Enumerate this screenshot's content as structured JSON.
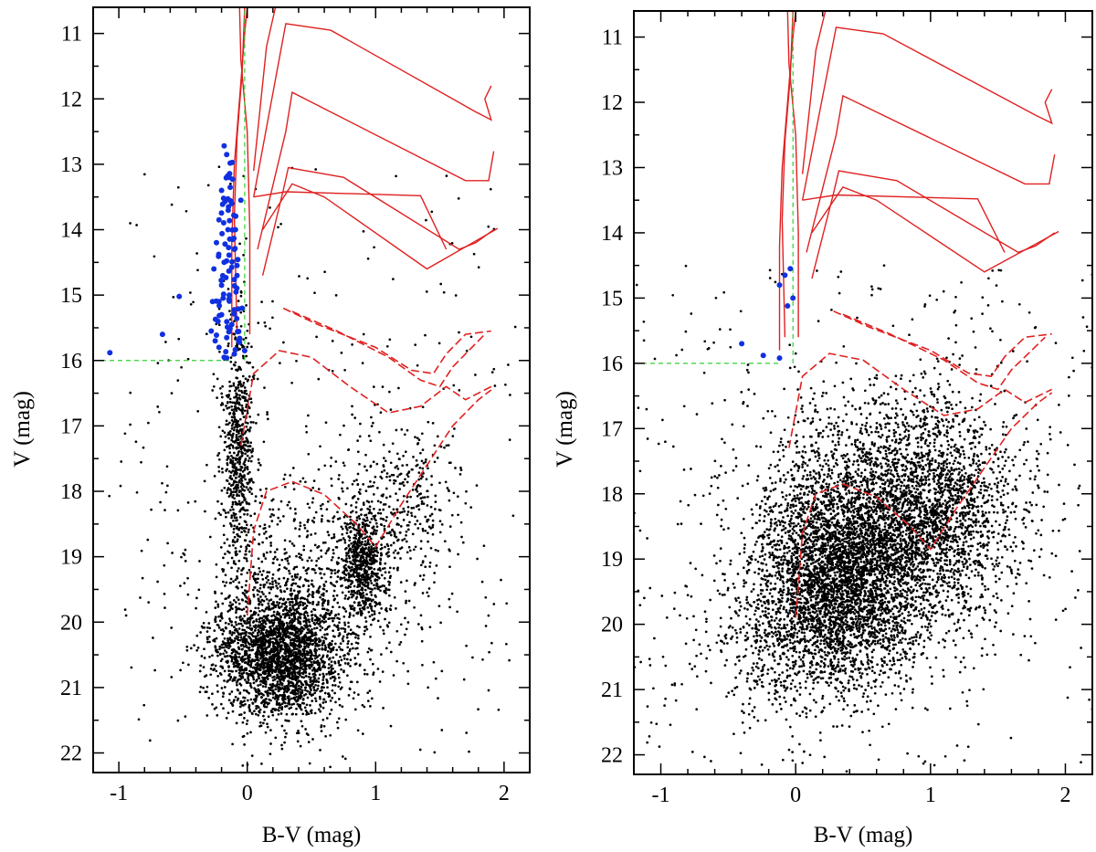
{
  "chart_data": [
    {
      "type": "scatter",
      "panel": "left",
      "xlabel": "B-V (mag)",
      "ylabel": "V (mag)",
      "xlim": [
        -1.2,
        2.2
      ],
      "ylim": [
        22.3,
        10.6
      ],
      "x_ticks": [
        -1,
        0,
        1,
        2
      ],
      "x_tick_labels": [
        "-1",
        "0",
        "1",
        "2"
      ],
      "y_ticks": [
        11,
        12,
        13,
        14,
        15,
        16,
        17,
        18,
        19,
        20,
        21,
        22
      ],
      "y_tick_labels": [
        "11",
        "12",
        "13",
        "14",
        "15",
        "16",
        "17",
        "18",
        "19",
        "20",
        "21",
        "22"
      ],
      "y_inverted": true,
      "grid": false,
      "colors": {
        "stars": "#000000",
        "members": "#1030e0",
        "isochrone": "#e02020",
        "guide": "#30d030"
      },
      "blue_members": [
        {
          "x": -1.07,
          "y": 15.88
        },
        {
          "x": -0.66,
          "y": 15.6
        },
        {
          "x": -0.53,
          "y": 15.02
        },
        {
          "x": -0.18,
          "y": 12.72
        },
        {
          "x": -0.16,
          "y": 12.85
        },
        {
          "x": -0.14,
          "y": 13.2
        },
        {
          "x": -0.2,
          "y": 13.4
        },
        {
          "x": -0.12,
          "y": 13.6
        },
        {
          "x": -0.05,
          "y": 13.55
        },
        {
          "x": -0.22,
          "y": 13.85
        },
        {
          "x": -0.15,
          "y": 14.0
        },
        {
          "x": -0.24,
          "y": 14.2
        },
        {
          "x": -0.1,
          "y": 14.3
        },
        {
          "x": -0.18,
          "y": 14.5
        },
        {
          "x": -0.26,
          "y": 14.6
        },
        {
          "x": -0.08,
          "y": 14.7
        },
        {
          "x": -0.2,
          "y": 14.85
        },
        {
          "x": -0.14,
          "y": 15.0
        },
        {
          "x": -0.27,
          "y": 15.1
        },
        {
          "x": -0.04,
          "y": 15.2
        },
        {
          "x": -0.2,
          "y": 15.3
        },
        {
          "x": -0.12,
          "y": 15.45
        },
        {
          "x": -0.28,
          "y": 15.55
        },
        {
          "x": -0.16,
          "y": 15.65
        },
        {
          "x": -0.06,
          "y": 15.72
        },
        {
          "x": -0.22,
          "y": 15.8
        },
        {
          "x": -0.1,
          "y": 15.9
        },
        {
          "x": -0.18,
          "y": 15.95
        },
        {
          "x": -0.02,
          "y": 15.85
        },
        {
          "x": -0.25,
          "y": 15.7
        }
      ],
      "blue_ridge": {
        "v_start": 12.9,
        "v_end": 16.0,
        "count": 70,
        "x_at_start": -0.14,
        "x_at_end": -0.16,
        "spread": 0.11
      },
      "field_stars": {
        "density_clumps": [
          {
            "x": 0.25,
            "y": 20.5,
            "sx": 0.24,
            "sy": 0.5,
            "n": 2400
          },
          {
            "x": 0.9,
            "y": 19.1,
            "sx": 0.09,
            "sy": 0.38,
            "n": 550
          },
          {
            "x": -0.07,
            "y": 17.3,
            "sx": 0.06,
            "sy": 0.9,
            "n": 650
          },
          {
            "x": 0.55,
            "y": 19.4,
            "sx": 0.45,
            "sy": 0.9,
            "n": 900
          },
          {
            "x": 1.2,
            "y": 18.1,
            "sx": 0.22,
            "sy": 0.6,
            "n": 300
          }
        ],
        "sparse": {
          "x_range": [
            -1.0,
            2.1
          ],
          "y_range": [
            13.0,
            22.2
          ],
          "n": 280
        }
      }
    },
    {
      "type": "scatter",
      "panel": "right",
      "xlabel": "B-V (mag)",
      "ylabel": "V (mag)",
      "xlim": [
        -1.2,
        2.2
      ],
      "ylim": [
        22.3,
        10.6
      ],
      "x_ticks": [
        -1,
        0,
        1,
        2
      ],
      "x_tick_labels": [
        "-1",
        "0",
        "1",
        "2"
      ],
      "y_ticks": [
        11,
        12,
        13,
        14,
        15,
        16,
        17,
        18,
        19,
        20,
        21,
        22
      ],
      "y_tick_labels": [
        "11",
        "12",
        "13",
        "14",
        "15",
        "16",
        "17",
        "18",
        "19",
        "20",
        "21",
        "22"
      ],
      "y_inverted": true,
      "grid": false,
      "colors": {
        "stars": "#000000",
        "members": "#1030e0",
        "isochrone": "#e02020",
        "guide": "#30d030"
      },
      "blue_members": [
        {
          "x": -0.4,
          "y": 15.7
        },
        {
          "x": -0.24,
          "y": 15.88
        },
        {
          "x": -0.12,
          "y": 15.92
        },
        {
          "x": -0.04,
          "y": 14.55
        },
        {
          "x": -0.08,
          "y": 14.65
        },
        {
          "x": -0.12,
          "y": 14.8
        },
        {
          "x": -0.02,
          "y": 15.0
        },
        {
          "x": -0.06,
          "y": 15.12
        }
      ],
      "field_stars": {
        "density_clumps": [
          {
            "x": 0.35,
            "y": 19.2,
            "sx": 0.32,
            "sy": 0.75,
            "n": 3800
          },
          {
            "x": 1.05,
            "y": 18.4,
            "sx": 0.3,
            "sy": 0.8,
            "n": 1800
          },
          {
            "x": 0.6,
            "y": 17.6,
            "sx": 0.5,
            "sy": 0.7,
            "n": 900
          },
          {
            "x": 0.1,
            "y": 20.3,
            "sx": 0.4,
            "sy": 0.6,
            "n": 700
          }
        ],
        "sparse": {
          "x_range": [
            -1.2,
            2.2
          ],
          "y_range": [
            14.5,
            22.2
          ],
          "n": 350
        }
      }
    }
  ],
  "isochrones": {
    "upper_solid": [
      [
        [
          0.02,
          15.6
        ],
        [
          0.02,
          14.0
        ],
        [
          0.0,
          12.5
        ],
        [
          -0.05,
          11.4
        ],
        [
          -0.06,
          10.6
        ]
      ],
      [
        [
          -0.08,
          15.6
        ],
        [
          -0.1,
          13.8
        ],
        [
          -0.08,
          12.6
        ],
        [
          -0.04,
          11.6
        ],
        [
          -0.02,
          10.6
        ]
      ],
      [
        [
          -0.12,
          15.8
        ],
        [
          -0.12,
          14.2
        ],
        [
          -0.1,
          13.0
        ],
        [
          -0.06,
          12.0
        ],
        [
          -0.02,
          11.0
        ],
        [
          0.0,
          10.6
        ]
      ],
      [
        [
          0.05,
          13.1
        ],
        [
          0.15,
          11.2
        ],
        [
          0.22,
          10.6
        ]
      ],
      [
        [
          0.05,
          13.5
        ],
        [
          0.3,
          10.85
        ],
        [
          0.65,
          10.95
        ],
        [
          1.78,
          12.2
        ],
        [
          1.9,
          12.32
        ],
        [
          1.85,
          12.0
        ],
        [
          1.9,
          11.8
        ]
      ],
      [
        [
          0.08,
          14.3
        ],
        [
          0.3,
          12.5
        ],
        [
          0.35,
          11.9
        ],
        [
          0.65,
          12.2
        ],
        [
          1.7,
          13.25
        ],
        [
          1.88,
          13.25
        ],
        [
          1.92,
          12.8
        ]
      ],
      [
        [
          0.12,
          14.7
        ],
        [
          0.28,
          13.4
        ],
        [
          0.32,
          13.05
        ],
        [
          0.75,
          13.2
        ],
        [
          1.65,
          14.3
        ],
        [
          1.78,
          14.2
        ],
        [
          1.92,
          14.0
        ]
      ],
      [
        [
          0.12,
          14.0
        ],
        [
          0.35,
          13.3
        ],
        [
          0.6,
          13.5
        ],
        [
          1.4,
          14.6
        ],
        [
          1.95,
          13.98
        ]
      ],
      [
        [
          0.05,
          13.5
        ],
        [
          0.3,
          13.42
        ],
        [
          1.35,
          13.48
        ],
        [
          1.55,
          14.3
        ]
      ]
    ],
    "lower_dashed": [
      [
        [
          0.28,
          15.2
        ],
        [
          0.55,
          15.45
        ],
        [
          1.0,
          15.8
        ],
        [
          1.28,
          16.15
        ],
        [
          1.45,
          16.2
        ],
        [
          1.55,
          15.9
        ],
        [
          1.7,
          15.6
        ],
        [
          1.9,
          15.55
        ]
      ],
      [
        [
          0.35,
          15.25
        ],
        [
          0.7,
          15.55
        ],
        [
          1.1,
          15.95
        ],
        [
          1.35,
          16.3
        ],
        [
          1.5,
          16.4
        ],
        [
          1.6,
          16.1
        ],
        [
          1.75,
          15.8
        ],
        [
          1.85,
          15.6
        ]
      ],
      [
        [
          -0.05,
          17.3
        ],
        [
          0.05,
          16.2
        ],
        [
          0.25,
          15.85
        ],
        [
          0.5,
          15.95
        ],
        [
          0.8,
          16.4
        ],
        [
          1.1,
          16.8
        ],
        [
          1.35,
          16.7
        ],
        [
          1.55,
          16.4
        ],
        [
          1.7,
          16.6
        ],
        [
          1.9,
          16.4
        ]
      ],
      [
        [
          0.0,
          19.9
        ],
        [
          0.05,
          18.6
        ],
        [
          0.15,
          18.0
        ],
        [
          0.35,
          17.85
        ],
        [
          0.6,
          18.05
        ],
        [
          0.85,
          18.5
        ],
        [
          1.0,
          18.85
        ],
        [
          1.2,
          18.2
        ],
        [
          1.4,
          17.6
        ],
        [
          1.6,
          17.0
        ],
        [
          1.8,
          16.6
        ],
        [
          1.9,
          16.45
        ]
      ]
    ]
  },
  "guide_lines": {
    "v_level": 16.0,
    "x_from": -1.2,
    "x_to": -0.12,
    "vertical_x": -0.02,
    "vertical_v_from": 16.0,
    "vertical_v_to": 10.6
  }
}
